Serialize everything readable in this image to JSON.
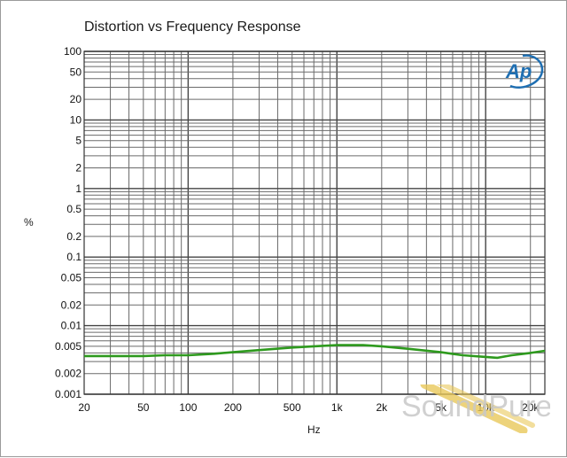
{
  "chart_data": {
    "type": "line",
    "title": "Distortion vs Frequency Response",
    "xlabel": "Hz",
    "ylabel": "%",
    "x_scale": "log",
    "y_scale": "log",
    "xlim": [
      20,
      25000
    ],
    "ylim": [
      0.001,
      100
    ],
    "grid": true,
    "x_ticks": [
      {
        "value": 20,
        "label": "20"
      },
      {
        "value": 50,
        "label": "50"
      },
      {
        "value": 100,
        "label": "100"
      },
      {
        "value": 200,
        "label": "200"
      },
      {
        "value": 500,
        "label": "500"
      },
      {
        "value": 1000,
        "label": "1k"
      },
      {
        "value": 2000,
        "label": "2k"
      },
      {
        "value": 5000,
        "label": "5k"
      },
      {
        "value": 10000,
        "label": "10k"
      },
      {
        "value": 20000,
        "label": "20k"
      }
    ],
    "y_ticks": [
      {
        "value": 100,
        "label": "100"
      },
      {
        "value": 50,
        "label": "50"
      },
      {
        "value": 20,
        "label": "20"
      },
      {
        "value": 10,
        "label": "10"
      },
      {
        "value": 5,
        "label": "5"
      },
      {
        "value": 2,
        "label": "2"
      },
      {
        "value": 1,
        "label": "1"
      },
      {
        "value": 0.5,
        "label": "0.5"
      },
      {
        "value": 0.2,
        "label": "0.2"
      },
      {
        "value": 0.1,
        "label": "0.1"
      },
      {
        "value": 0.05,
        "label": "0.05"
      },
      {
        "value": 0.02,
        "label": "0.02"
      },
      {
        "value": 0.01,
        "label": "0.01"
      },
      {
        "value": 0.005,
        "label": "0.005"
      },
      {
        "value": 0.002,
        "label": "0.002"
      },
      {
        "value": 0.001,
        "label": "0.001"
      }
    ],
    "series": [
      {
        "color": "#2e9a1e",
        "x": [
          20,
          30,
          50,
          70,
          100,
          150,
          200,
          300,
          500,
          700,
          1000,
          1500,
          2000,
          3000,
          5000,
          7000,
          10000,
          12000,
          15000,
          20000,
          25000
        ],
        "y": [
          0.0036,
          0.0036,
          0.0036,
          0.0037,
          0.0037,
          0.0039,
          0.0041,
          0.0044,
          0.0048,
          0.005,
          0.0052,
          0.0052,
          0.005,
          0.0046,
          0.0041,
          0.0037,
          0.0035,
          0.0034,
          0.0037,
          0.004,
          0.0043
        ]
      }
    ]
  },
  "logo": {
    "text": "Ap",
    "color": "#1f6fb2"
  },
  "watermark": {
    "text": "SoundPure"
  }
}
